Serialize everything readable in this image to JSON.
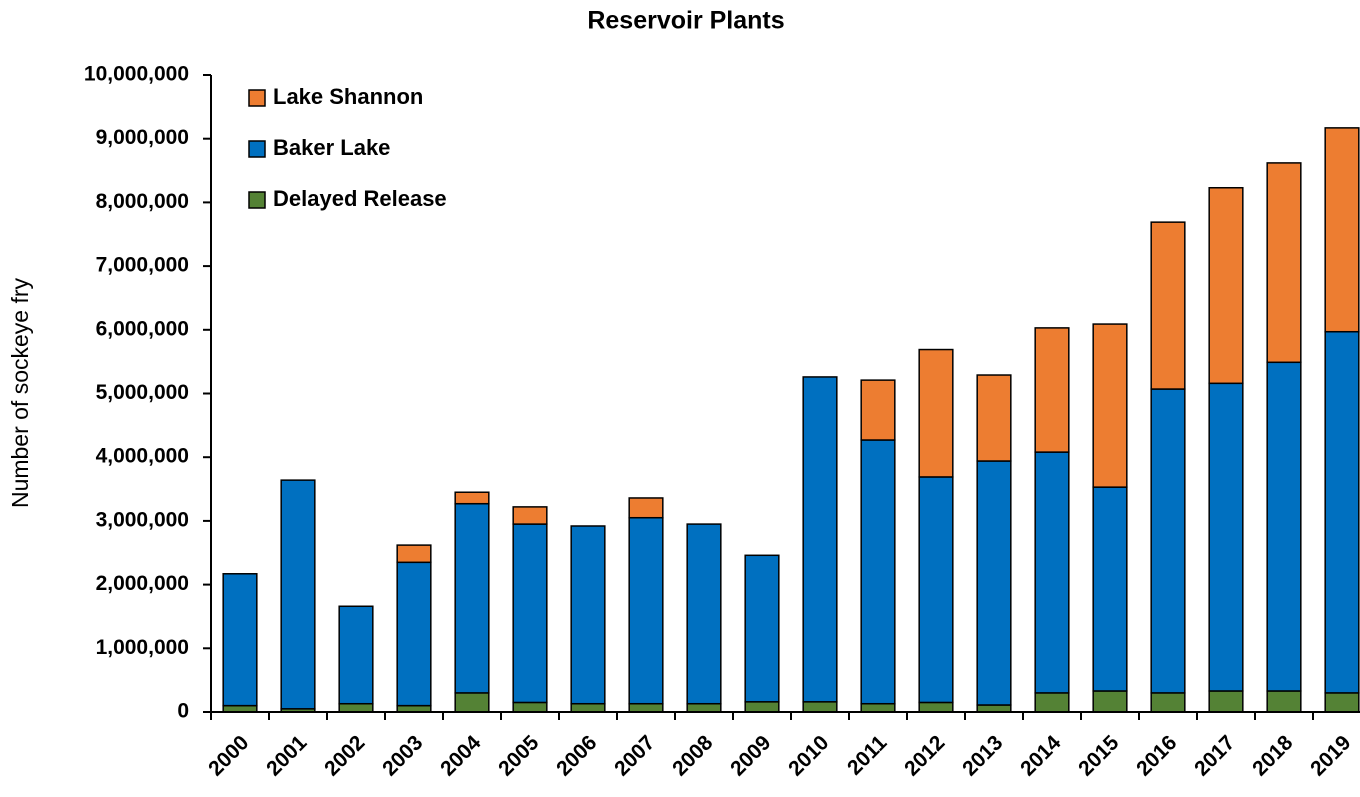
{
  "chart_data": {
    "type": "stacked-bar",
    "title": "Reservoir Plants",
    "y_label": "Number of sockeye fry",
    "categories": [
      "2000",
      "2001",
      "2002",
      "2003",
      "2004",
      "2005",
      "2006",
      "2007",
      "2008",
      "2009",
      "2010",
      "2011",
      "2012",
      "2013",
      "2014",
      "2015",
      "2016",
      "2017",
      "2018",
      "2019"
    ],
    "series": [
      {
        "name": "Delayed Release",
        "color": "#548235",
        "values": [
          100000,
          50000,
          130000,
          100000,
          300000,
          150000,
          130000,
          130000,
          130000,
          160000,
          160000,
          130000,
          150000,
          110000,
          300000,
          330000,
          300000,
          330000,
          330000,
          300000
        ]
      },
      {
        "name": "Baker Lake",
        "color": "#0070c0",
        "values": [
          2070000,
          3590000,
          1530000,
          2250000,
          2970000,
          2800000,
          2790000,
          2920000,
          2820000,
          2300000,
          5100000,
          4140000,
          3540000,
          3830000,
          3780000,
          3200000,
          4770000,
          4830000,
          5160000,
          5670000
        ]
      },
      {
        "name": "Lake Shannon",
        "color": "#ed7d31",
        "values": [
          0,
          0,
          0,
          270000,
          180000,
          270000,
          0,
          310000,
          0,
          0,
          0,
          940000,
          2000000,
          1350000,
          1950000,
          2560000,
          2620000,
          3070000,
          3130000,
          3200000
        ]
      }
    ],
    "ylim": [
      0,
      10000000
    ],
    "yticks": [
      0,
      {
        "value": 1000000,
        "label": "1,000,000"
      },
      {
        "value": 2000000,
        "label": "2,000,000"
      },
      {
        "value": 3000000,
        "label": "3,000,000"
      },
      {
        "value": 4000000,
        "label": "4,000,000"
      },
      {
        "value": 5000000,
        "label": "5,000,000"
      },
      {
        "value": 6000000,
        "label": "6,000,000"
      },
      {
        "value": 7000000,
        "label": "7,000,000"
      },
      {
        "value": 8000000,
        "label": "8,000,000"
      },
      {
        "value": 9000000,
        "label": "9,000,000"
      },
      {
        "value": 10000000,
        "label": "10,000,000"
      }
    ],
    "legend": "upper left"
  }
}
